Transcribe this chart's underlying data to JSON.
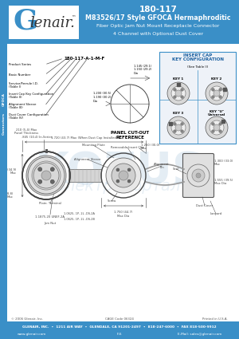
{
  "title_line1": "180-117",
  "title_line2": "M83526/17 Style GFOCA Hermaphroditic",
  "title_line3": "Fiber Optic Jam Nut Mount Receptacle Connector",
  "title_line4": "4 Channel with Optional Dust Cover",
  "header_bg": "#3a8fc7",
  "header_text_color": "#ffffff",
  "side_tab_bg": "#3a8fc7",
  "side_tab_text": "GFOCA\nConnectors",
  "body_bg": "#ffffff",
  "part_number_label": "180-117-A-1-M-F",
  "panel_cutout_title": "PANEL CUT-OUT\nREFERENCE",
  "insert_cap_title": "INSERT CAP\nKEY CONFIGURATION",
  "insert_cap_subtitle": "(See Table II)",
  "key_labels": [
    "KEY 1",
    "KEY 2",
    "KEY 3",
    "KEY \"U\"\nUniversal"
  ],
  "footer_bg": "#3a8fc7",
  "footer_text_color": "#ffffff",
  "footer_line1": "GLENAIR, INC.  •  1211 AIR WAY  •  GLENDALE, CA 91201-2497  •  818-247-6000  •  FAX 818-500-9912",
  "footer_line2": "www.glenair.com",
  "footer_line2b": "F-6",
  "footer_line2c": "E-Mail: sales@glenair.com",
  "footer_sub": "© 2006 Glenair, Inc.",
  "footer_sub2": "CAGE Code 06324",
  "footer_sub3": "Printed in U.S.A.",
  "body_labels": [
    "Product Series",
    "Basic Number",
    "Service/Ferrule I.D.\n(Table I)",
    "Insert Cap Key Configuration\n(Table II)",
    "Alignment Sleeve\n(Table III)",
    "Dust Cover Configuration\n(Table IV)"
  ],
  "watermark_text": "электропортал",
  "watermark_text2": "KOZUS"
}
